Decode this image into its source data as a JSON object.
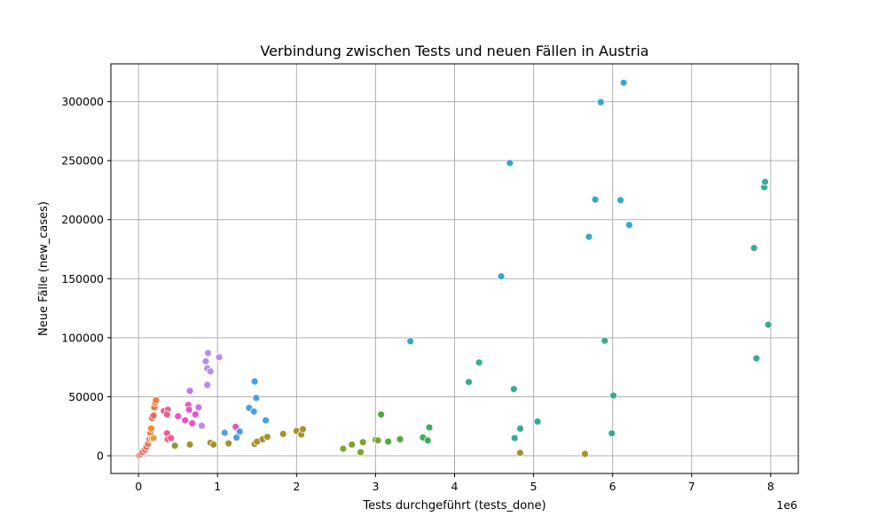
{
  "chart_data": {
    "type": "scatter",
    "title": "Verbindung zwischen Tests und neuen Fällen in Austria",
    "xlabel": "Tests durchgeführt (tests_done)",
    "ylabel": "Neue Fälle (new_cases)",
    "x_offset_label": "1e6",
    "xlim": [
      -0.35,
      8.35
    ],
    "ylim": [
      -15000,
      332000
    ],
    "x_ticks": [
      0,
      1,
      2,
      3,
      4,
      5,
      6,
      7,
      8
    ],
    "x_tick_labels": [
      "0",
      "1",
      "2",
      "3",
      "4",
      "5",
      "6",
      "7",
      "8"
    ],
    "y_ticks": [
      0,
      50000,
      100000,
      150000,
      200000,
      250000,
      300000
    ],
    "y_tick_labels": [
      "0",
      "50000",
      "100000",
      "150000",
      "200000",
      "250000",
      "300000"
    ],
    "grid": true,
    "points": [
      {
        "x": 0.01,
        "y": 500,
        "color": "#e8716b"
      },
      {
        "x": 0.03,
        "y": 1500,
        "color": "#e8716b"
      },
      {
        "x": 0.05,
        "y": 3000,
        "color": "#e8716b"
      },
      {
        "x": 0.08,
        "y": 5000,
        "color": "#e8716b"
      },
      {
        "x": 0.1,
        "y": 7500,
        "color": "#e8716b"
      },
      {
        "x": 0.12,
        "y": 10000,
        "color": "#ea7a4f"
      },
      {
        "x": 0.14,
        "y": 14000,
        "color": "#ea7a4f"
      },
      {
        "x": 0.15,
        "y": 19000,
        "color": "#ec8a3a"
      },
      {
        "x": 0.16,
        "y": 23000,
        "color": "#ec8a3a"
      },
      {
        "x": 0.17,
        "y": 32000,
        "color": "#ee6a55"
      },
      {
        "x": 0.19,
        "y": 34000,
        "color": "#ee6a55"
      },
      {
        "x": 0.2,
        "y": 41000,
        "color": "#ee7a40"
      },
      {
        "x": 0.21,
        "y": 45000,
        "color": "#ee7a40"
      },
      {
        "x": 0.22,
        "y": 47000,
        "color": "#ef7d3a"
      },
      {
        "x": 0.17,
        "y": 14500,
        "color": "#d9a23a"
      },
      {
        "x": 0.19,
        "y": 15000,
        "color": "#d9a23a"
      },
      {
        "x": 0.32,
        "y": 38000,
        "color": "#ef5f8c"
      },
      {
        "x": 0.37,
        "y": 39000,
        "color": "#ef5f8c"
      },
      {
        "x": 0.36,
        "y": 35000,
        "color": "#ef5f8c"
      },
      {
        "x": 0.36,
        "y": 19000,
        "color": "#ef5f8c"
      },
      {
        "x": 0.37,
        "y": 14000,
        "color": "#ef5f8c"
      },
      {
        "x": 0.41,
        "y": 15000,
        "color": "#ef5f8c"
      },
      {
        "x": 0.46,
        "y": 8500,
        "color": "#7fa230"
      },
      {
        "x": 0.5,
        "y": 33500,
        "color": "#e455c8"
      },
      {
        "x": 0.59,
        "y": 30000,
        "color": "#e455c8"
      },
      {
        "x": 0.63,
        "y": 43000,
        "color": "#e455c8"
      },
      {
        "x": 0.64,
        "y": 39000,
        "color": "#e455c8"
      },
      {
        "x": 0.68,
        "y": 27500,
        "color": "#e455c8"
      },
      {
        "x": 0.72,
        "y": 35000,
        "color": "#e455c8"
      },
      {
        "x": 0.65,
        "y": 55000,
        "color": "#c873e8"
      },
      {
        "x": 0.76,
        "y": 41000,
        "color": "#c873e8"
      },
      {
        "x": 0.8,
        "y": 25500,
        "color": "#b98cec"
      },
      {
        "x": 0.85,
        "y": 80000,
        "color": "#b98cec"
      },
      {
        "x": 0.87,
        "y": 74000,
        "color": "#b98cec"
      },
      {
        "x": 0.88,
        "y": 87000,
        "color": "#b98cec"
      },
      {
        "x": 0.87,
        "y": 60000,
        "color": "#b98cec"
      },
      {
        "x": 0.91,
        "y": 71500,
        "color": "#b98cec"
      },
      {
        "x": 1.02,
        "y": 83500,
        "color": "#b98cec"
      },
      {
        "x": 0.65,
        "y": 9500,
        "color": "#a5922e"
      },
      {
        "x": 0.91,
        "y": 11000,
        "color": "#a5922e"
      },
      {
        "x": 0.95,
        "y": 9500,
        "color": "#a5922e"
      },
      {
        "x": 1.14,
        "y": 10500,
        "color": "#a5922e"
      },
      {
        "x": 1.09,
        "y": 19500,
        "color": "#5a9be6"
      },
      {
        "x": 1.23,
        "y": 24500,
        "color": "#e455c8"
      },
      {
        "x": 1.24,
        "y": 15500,
        "color": "#4aa0df"
      },
      {
        "x": 1.28,
        "y": 20500,
        "color": "#4aa0df"
      },
      {
        "x": 1.4,
        "y": 40500,
        "color": "#4aa0df"
      },
      {
        "x": 1.46,
        "y": 37500,
        "color": "#4aa0df"
      },
      {
        "x": 1.47,
        "y": 63000,
        "color": "#4aa0df"
      },
      {
        "x": 1.49,
        "y": 49000,
        "color": "#4aa0df"
      },
      {
        "x": 1.61,
        "y": 30000,
        "color": "#4aa0df"
      },
      {
        "x": 1.47,
        "y": 10000,
        "color": "#a5922e"
      },
      {
        "x": 1.5,
        "y": 12000,
        "color": "#a5922e"
      },
      {
        "x": 1.57,
        "y": 14000,
        "color": "#a5922e"
      },
      {
        "x": 1.63,
        "y": 16000,
        "color": "#a5922e"
      },
      {
        "x": 1.83,
        "y": 18500,
        "color": "#a5922e"
      },
      {
        "x": 2.0,
        "y": 21000,
        "color": "#a5922e"
      },
      {
        "x": 2.06,
        "y": 18000,
        "color": "#a5922e"
      },
      {
        "x": 2.08,
        "y": 22500,
        "color": "#a5922e"
      },
      {
        "x": 2.59,
        "y": 6000,
        "color": "#7fa230"
      },
      {
        "x": 2.7,
        "y": 9500,
        "color": "#7fa230"
      },
      {
        "x": 2.81,
        "y": 3000,
        "color": "#7fa230"
      },
      {
        "x": 2.84,
        "y": 11500,
        "color": "#7fa230"
      },
      {
        "x": 3.0,
        "y": 13500,
        "color": "#7fa230"
      },
      {
        "x": 3.03,
        "y": 13000,
        "color": "#7fa230"
      },
      {
        "x": 3.07,
        "y": 35000,
        "color": "#4dab3e"
      },
      {
        "x": 3.16,
        "y": 12000,
        "color": "#4dab3e"
      },
      {
        "x": 3.31,
        "y": 14000,
        "color": "#4dab3e"
      },
      {
        "x": 3.6,
        "y": 15500,
        "color": "#3cae5a"
      },
      {
        "x": 3.66,
        "y": 13000,
        "color": "#3cae5a"
      },
      {
        "x": 3.68,
        "y": 24000,
        "color": "#3cae5a"
      },
      {
        "x": 4.83,
        "y": 2500,
        "color": "#a5922e"
      },
      {
        "x": 5.65,
        "y": 1500,
        "color": "#a5922e"
      },
      {
        "x": 3.44,
        "y": 97000,
        "color": "#36a8c9"
      },
      {
        "x": 4.18,
        "y": 62500,
        "color": "#35ac93"
      },
      {
        "x": 4.31,
        "y": 79000,
        "color": "#35ac93"
      },
      {
        "x": 4.59,
        "y": 152000,
        "color": "#36a8c9"
      },
      {
        "x": 4.7,
        "y": 248000,
        "color": "#36a8c9"
      },
      {
        "x": 4.75,
        "y": 56500,
        "color": "#35ac93"
      },
      {
        "x": 4.76,
        "y": 15000,
        "color": "#35ac93"
      },
      {
        "x": 4.83,
        "y": 23000,
        "color": "#35ac93"
      },
      {
        "x": 5.05,
        "y": 29000,
        "color": "#35ac93"
      },
      {
        "x": 5.7,
        "y": 185500,
        "color": "#36a8c9"
      },
      {
        "x": 5.78,
        "y": 217000,
        "color": "#36a8c9"
      },
      {
        "x": 5.85,
        "y": 299500,
        "color": "#36a8c9"
      },
      {
        "x": 5.9,
        "y": 97500,
        "color": "#35ac93"
      },
      {
        "x": 5.99,
        "y": 19000,
        "color": "#35ac93"
      },
      {
        "x": 6.01,
        "y": 51000,
        "color": "#35ac93"
      },
      {
        "x": 6.1,
        "y": 216500,
        "color": "#36a8c9"
      },
      {
        "x": 6.14,
        "y": 316000,
        "color": "#36a8c9"
      },
      {
        "x": 6.21,
        "y": 195500,
        "color": "#36a8c9"
      },
      {
        "x": 7.79,
        "y": 176000,
        "color": "#35ac93"
      },
      {
        "x": 7.82,
        "y": 82500,
        "color": "#35ac93"
      },
      {
        "x": 7.92,
        "y": 227500,
        "color": "#35ac93"
      },
      {
        "x": 7.93,
        "y": 232000,
        "color": "#35ac93"
      },
      {
        "x": 7.97,
        "y": 111000,
        "color": "#35ac93"
      }
    ]
  }
}
